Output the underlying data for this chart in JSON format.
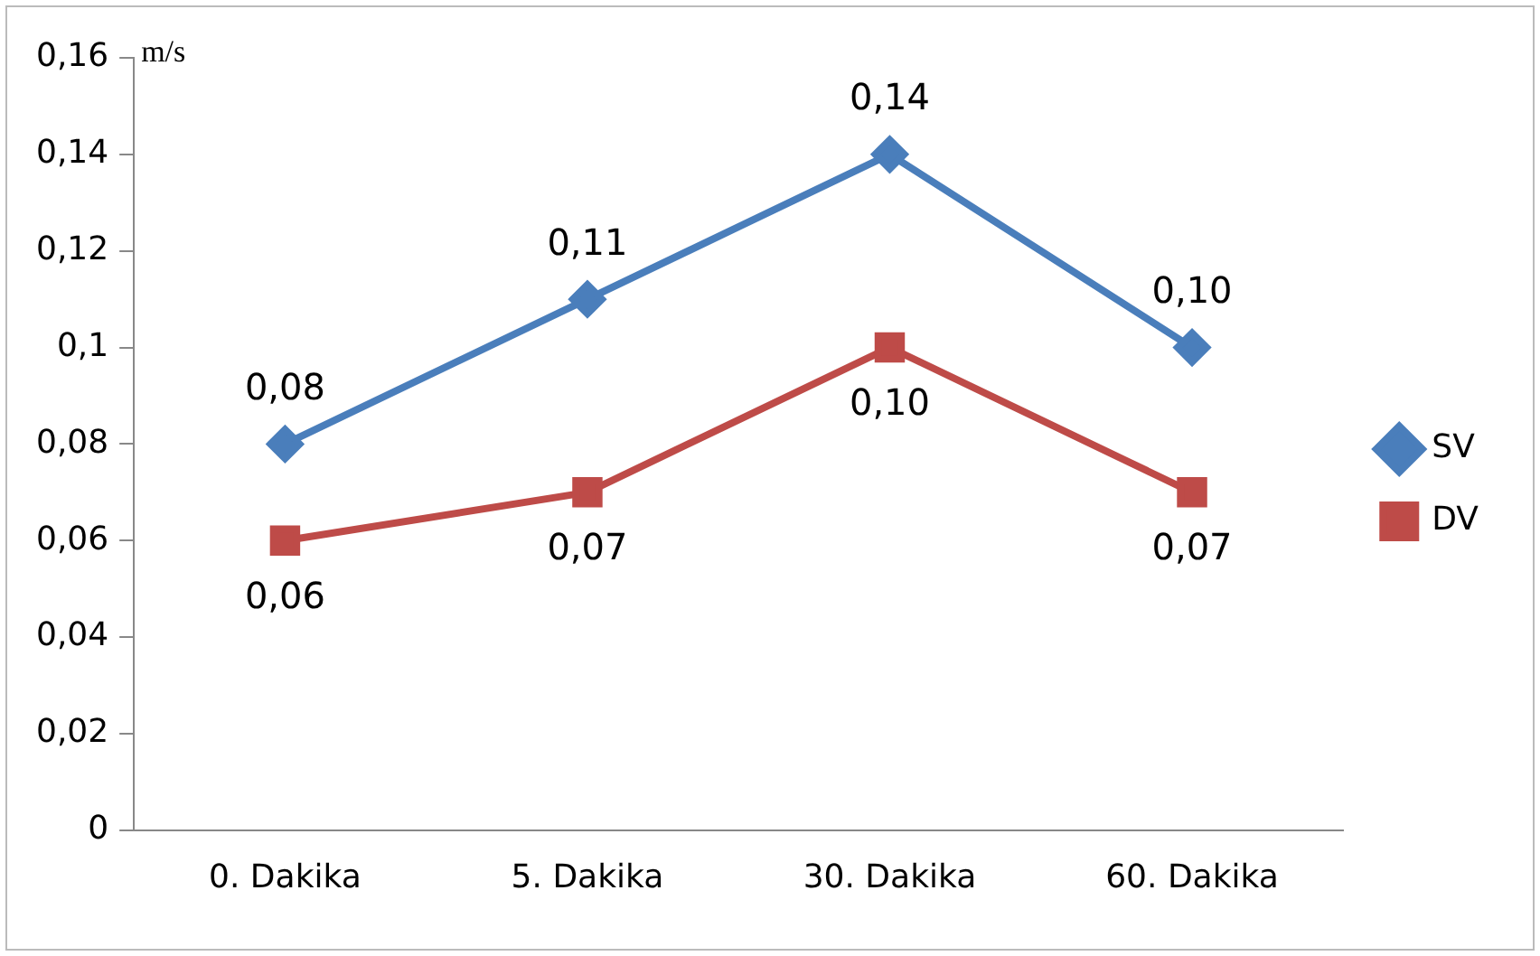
{
  "chart_data": {
    "type": "line",
    "ylabel": "m/s",
    "categories": [
      "0. Dakika",
      "5. Dakika",
      "30. Dakika",
      "60. Dakika"
    ],
    "series": [
      {
        "name": "SV",
        "color": "#4a7ebb",
        "marker": "diamond",
        "values": [
          0.08,
          0.11,
          0.14,
          0.1
        ],
        "value_labels": [
          "0,08",
          "0,11",
          "0,14",
          "0,10"
        ]
      },
      {
        "name": "DV",
        "color": "#be4b48",
        "marker": "square",
        "values": [
          0.06,
          0.07,
          0.1,
          0.07
        ],
        "value_labels": [
          "0,06",
          "0,07",
          "0,10",
          "0,07"
        ]
      }
    ],
    "ylim": [
      0,
      0.16
    ],
    "yticks": [
      {
        "value": 0,
        "label": "0"
      },
      {
        "value": 0.02,
        "label": "0,02"
      },
      {
        "value": 0.04,
        "label": "0,04"
      },
      {
        "value": 0.06,
        "label": "0,06"
      },
      {
        "value": 0.08,
        "label": "0,08"
      },
      {
        "value": 0.1,
        "label": "0,1"
      },
      {
        "value": 0.12,
        "label": "0,12"
      },
      {
        "value": 0.14,
        "label": "0,14"
      },
      {
        "value": 0.16,
        "label": "0,16"
      }
    ],
    "grid": false,
    "legend": "right",
    "line_style": "solid"
  }
}
